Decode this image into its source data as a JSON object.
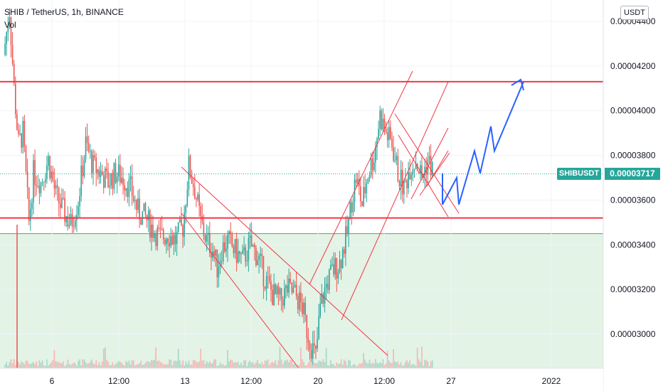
{
  "header": {
    "title": "SHIB / TetherUS, 1h, BINANCE",
    "volume_label": "Vol"
  },
  "price_scale": {
    "currency_button": "USDT",
    "current_symbol": "SHIBUSDT",
    "current_price": "0.00003717"
  },
  "colors": {
    "up": "#26a69a",
    "down": "#ef5350",
    "trendline": "#f23645",
    "projection": "#2962ff",
    "zone_fill": "#e3f3e6",
    "zone_border": "#4caf50"
  },
  "chart_data": {
    "type": "candlestick",
    "symbol": "SHIB / TetherUS",
    "interval": "1h",
    "exchange": "BINANCE",
    "y_ticks": [
      "0.00003000",
      "0.00003200",
      "0.00003400",
      "0.00003600",
      "0.00003800",
      "0.00004000",
      "0.00004200",
      "0.00004400"
    ],
    "y_tick_values": [
      3e-05,
      3.2e-05,
      3.4e-05,
      3.6e-05,
      3.8e-05,
      4e-05,
      4.2e-05,
      4.4e-05
    ],
    "x_ticks": [
      "6",
      "12:00",
      "13",
      "12:00",
      "20",
      "12:00",
      "27",
      "2022"
    ],
    "ylim": [
      2.82e-05,
      4.55e-05
    ],
    "last_price": 3.717e-05,
    "price_path": [
      [
        0.0,
        4.25e-05
      ],
      [
        0.4,
        4.45e-05
      ],
      [
        0.7,
        4.1e-05
      ],
      [
        1.0,
        3.85e-05
      ],
      [
        1.3,
        3.9e-05
      ],
      [
        1.7,
        3.5e-05
      ],
      [
        2.0,
        3.72e-05
      ],
      [
        2.5,
        3.68e-05
      ],
      [
        3.0,
        3.78e-05
      ],
      [
        3.5,
        3.62e-05
      ],
      [
        4.0,
        3.55e-05
      ],
      [
        4.5,
        3.49e-05
      ],
      [
        5.0,
        3.6e-05
      ],
      [
        5.5,
        3.85e-05
      ],
      [
        6.0,
        3.75e-05
      ],
      [
        6.5,
        3.72e-05
      ],
      [
        7.0,
        3.68e-05
      ],
      [
        7.5,
        3.72e-05
      ],
      [
        8.0,
        3.7e-05
      ],
      [
        8.5,
        3.65e-05
      ],
      [
        9.0,
        3.55e-05
      ],
      [
        9.5,
        3.52e-05
      ],
      [
        10.0,
        3.47e-05
      ],
      [
        10.5,
        3.43e-05
      ],
      [
        11.0,
        3.45e-05
      ],
      [
        11.5,
        3.42e-05
      ],
      [
        12.0,
        3.48e-05
      ],
      [
        12.4,
        3.75e-05
      ],
      [
        12.8,
        3.65e-05
      ],
      [
        13.2,
        3.5e-05
      ],
      [
        13.6,
        3.42e-05
      ],
      [
        14.0,
        3.38e-05
      ],
      [
        14.3,
        3.3e-05
      ],
      [
        14.6,
        3.38e-05
      ],
      [
        15.0,
        3.42e-05
      ],
      [
        15.5,
        3.37e-05
      ],
      [
        16.0,
        3.33e-05
      ],
      [
        16.5,
        3.4e-05
      ],
      [
        17.0,
        3.35e-05
      ],
      [
        17.5,
        3.25e-05
      ],
      [
        18.0,
        3.18e-05
      ],
      [
        18.5,
        3.15e-05
      ],
      [
        19.0,
        3.2e-05
      ],
      [
        19.5,
        3.18e-05
      ],
      [
        20.0,
        3.12e-05
      ],
      [
        20.3,
        3.02e-05
      ],
      [
        20.6,
        2.95e-05
      ],
      [
        20.9,
        2.9e-05
      ],
      [
        21.2,
        3.12e-05
      ],
      [
        21.6,
        3.22e-05
      ],
      [
        22.0,
        3.28e-05
      ],
      [
        22.5,
        3.32e-05
      ],
      [
        23.0,
        3.45e-05
      ],
      [
        23.3,
        3.6e-05
      ],
      [
        23.6,
        3.7e-05
      ],
      [
        24.0,
        3.58e-05
      ],
      [
        24.4,
        3.72e-05
      ],
      [
        24.8,
        3.8e-05
      ],
      [
        25.2,
        3.98e-05
      ],
      [
        25.6,
        3.9e-05
      ],
      [
        26.0,
        3.85e-05
      ],
      [
        26.4,
        3.72e-05
      ],
      [
        26.8,
        3.65e-05
      ],
      [
        27.2,
        3.75e-05
      ],
      [
        27.6,
        3.78e-05
      ],
      [
        28.0,
        3.7e-05
      ],
      [
        28.4,
        3.78e-05
      ],
      [
        28.8,
        3.72e-05
      ]
    ],
    "annotations": {
      "resistance": 4.13e-05,
      "support": 3.52e-05,
      "zone_top": 3.45e-05,
      "projection_path": [
        3.72e-05,
        3.58e-05,
        3.7e-05,
        3.58e-05,
        3.82e-05,
        3.72e-05,
        3.93e-05,
        3.82e-05,
        4.13e-05
      ]
    }
  }
}
